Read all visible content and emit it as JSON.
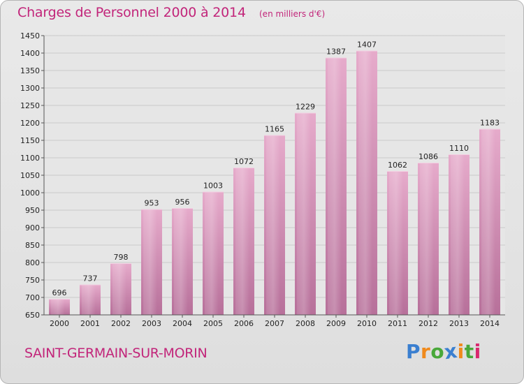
{
  "chart_data": {
    "type": "bar",
    "title": "Charges de Personnel 2000 à 2014",
    "subtitle": "(en milliers d'€)",
    "categories": [
      "2000",
      "2001",
      "2002",
      "2003",
      "2004",
      "2005",
      "2006",
      "2007",
      "2008",
      "2009",
      "2010",
      "2011",
      "2012",
      "2013",
      "2014"
    ],
    "values": [
      696,
      737,
      798,
      953,
      956,
      1003,
      1072,
      1165,
      1229,
      1387,
      1407,
      1062,
      1086,
      1110,
      1183
    ],
    "ylim": [
      650,
      1450
    ],
    "yticks": [
      650,
      700,
      750,
      800,
      850,
      900,
      950,
      1000,
      1050,
      1100,
      1150,
      1200,
      1250,
      1300,
      1350,
      1400,
      1450
    ],
    "xlabel": "",
    "ylabel": "",
    "grid": true,
    "bar_color": "#e2a4c6",
    "bar_color_dark": "#b56a95"
  },
  "footer": {
    "commune": "SAINT-GERMAIN-SUR-MORIN",
    "logo_letters": [
      {
        "ch": "P",
        "color": "#3a7fd0"
      },
      {
        "ch": "r",
        "color": "#f08a1c"
      },
      {
        "ch": "o",
        "color": "#49a83a"
      },
      {
        "ch": "x",
        "color": "#3a7fd0"
      },
      {
        "ch": "i",
        "color": "#f08a1c"
      },
      {
        "ch": "t",
        "color": "#49a83a"
      },
      {
        "ch": "i",
        "color": "#d9286f"
      }
    ]
  }
}
